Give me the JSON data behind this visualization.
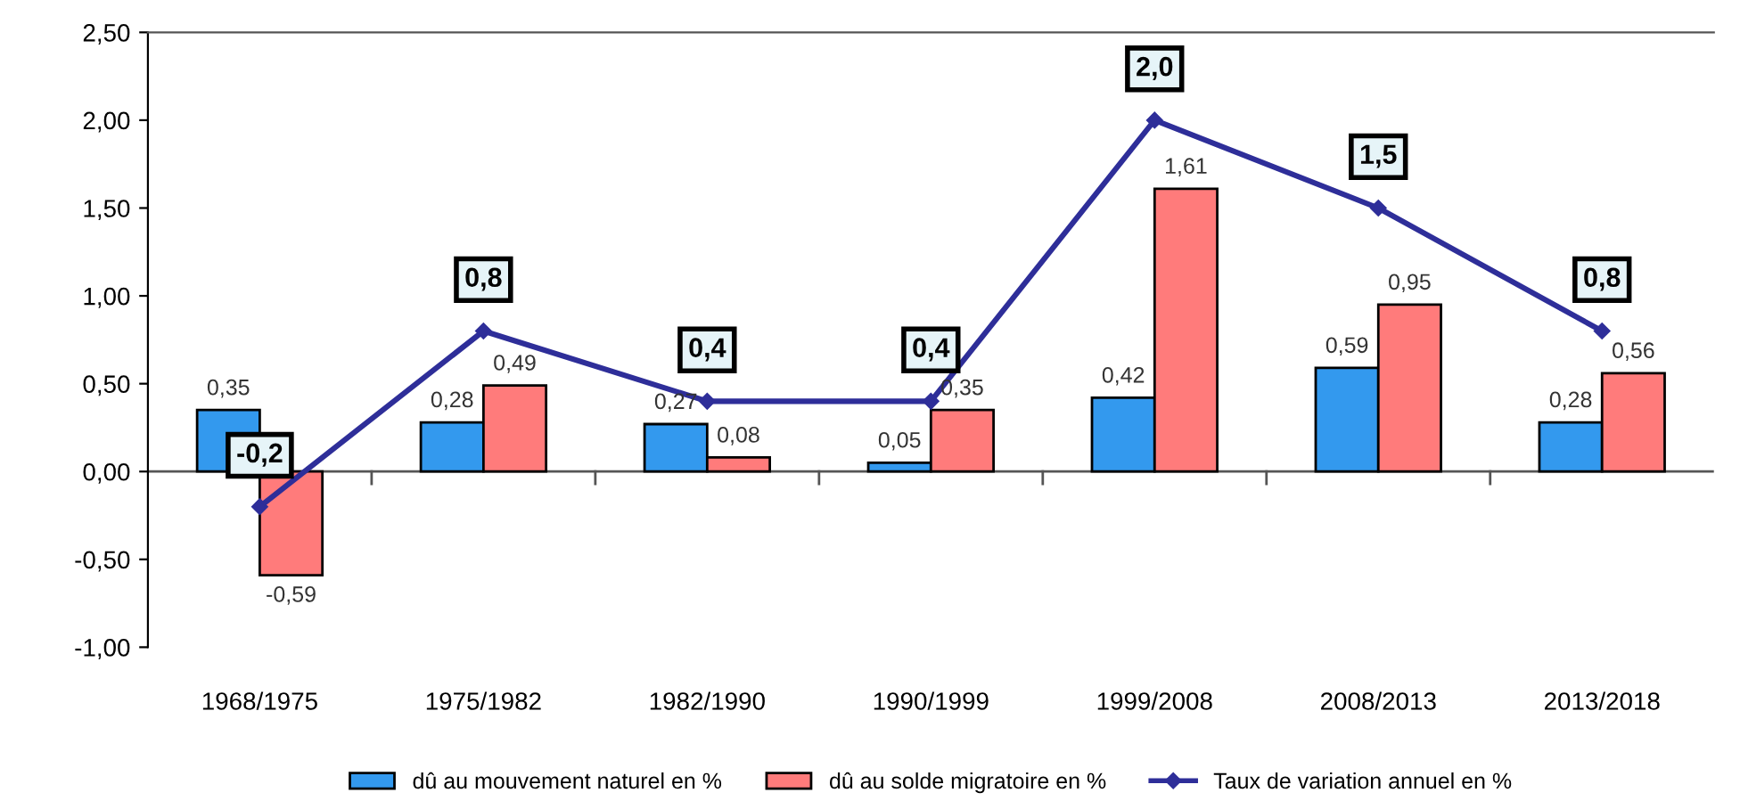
{
  "chart_data": {
    "type": "bar",
    "categories": [
      "1968/1975",
      "1975/1982",
      "1982/1990",
      "1990/1999",
      "1999/2008",
      "2008/2013",
      "2013/2018"
    ],
    "series": [
      {
        "name": "dû au mouvement naturel en %",
        "color": "#3399ee",
        "values": [
          0.35,
          0.28,
          0.27,
          0.05,
          0.42,
          0.59,
          0.28
        ],
        "value_labels": [
          "0,35",
          "0,28",
          "0,27",
          "0,05",
          "0,42",
          "0,59",
          "0,28"
        ]
      },
      {
        "name": "dû au solde migratoire en %",
        "color": "#ff7b7b",
        "values": [
          -0.59,
          0.49,
          0.08,
          0.35,
          1.61,
          0.95,
          0.56
        ],
        "value_labels": [
          "-0,59",
          "0,49",
          "0,08",
          "0,35",
          "1,61",
          "0,95",
          "0,56"
        ]
      },
      {
        "name": "Taux de variation annuel en %",
        "type": "line",
        "color": "#2e2e99",
        "marker": "diamond",
        "values": [
          -0.2,
          0.8,
          0.4,
          0.4,
          2.0,
          1.5,
          0.8
        ],
        "value_labels": [
          "-0,2",
          "0,8",
          "0,4",
          "0,4",
          "2,0",
          "1,5",
          "0,8"
        ]
      }
    ],
    "ylim": [
      -1.0,
      2.5
    ],
    "yticks": [
      {
        "value": -1.0,
        "label": "-1,00"
      },
      {
        "value": -0.5,
        "label": "-0,50"
      },
      {
        "value": 0.0,
        "label": "0,00"
      },
      {
        "value": 0.5,
        "label": "0,50"
      },
      {
        "value": 1.0,
        "label": "1,00"
      },
      {
        "value": 1.5,
        "label": "1,50"
      },
      {
        "value": 2.0,
        "label": "2,00"
      },
      {
        "value": 2.5,
        "label": "2,50"
      }
    ],
    "legend": "bottom"
  }
}
